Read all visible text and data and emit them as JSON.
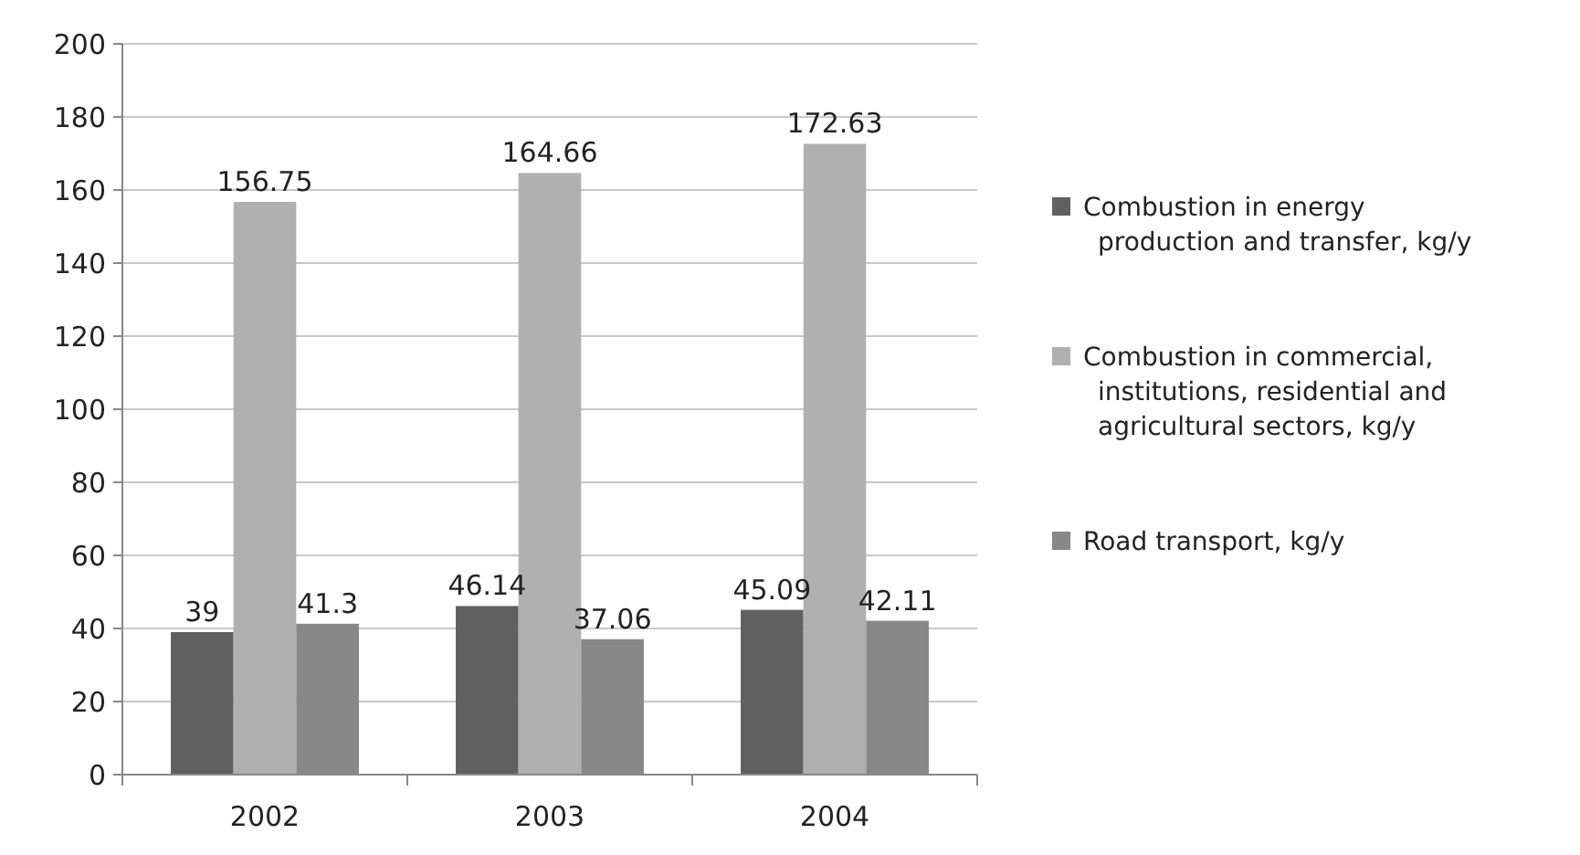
{
  "chart_data": {
    "type": "bar",
    "categories": [
      "2002",
      "2003",
      "2004"
    ],
    "series": [
      {
        "name": "Combustion in energy production and transfer, kg/y",
        "color": "#606060",
        "values": [
          39,
          46.14,
          45.09
        ]
      },
      {
        "name": "Combustion in commercial, institutions, residential and agricultural sectors, kg/y",
        "color": "#b0b0b0",
        "values": [
          156.75,
          164.66,
          172.63
        ]
      },
      {
        "name": "Road transport, kg/y",
        "color": "#888888",
        "values": [
          41.3,
          37.06,
          42.11
        ]
      }
    ],
    "ylim": [
      0,
      200
    ],
    "yticks": [
      0,
      20,
      40,
      60,
      80,
      100,
      120,
      140,
      160,
      180,
      200
    ],
    "grid": "y",
    "legend": "right",
    "data_labels": true
  }
}
